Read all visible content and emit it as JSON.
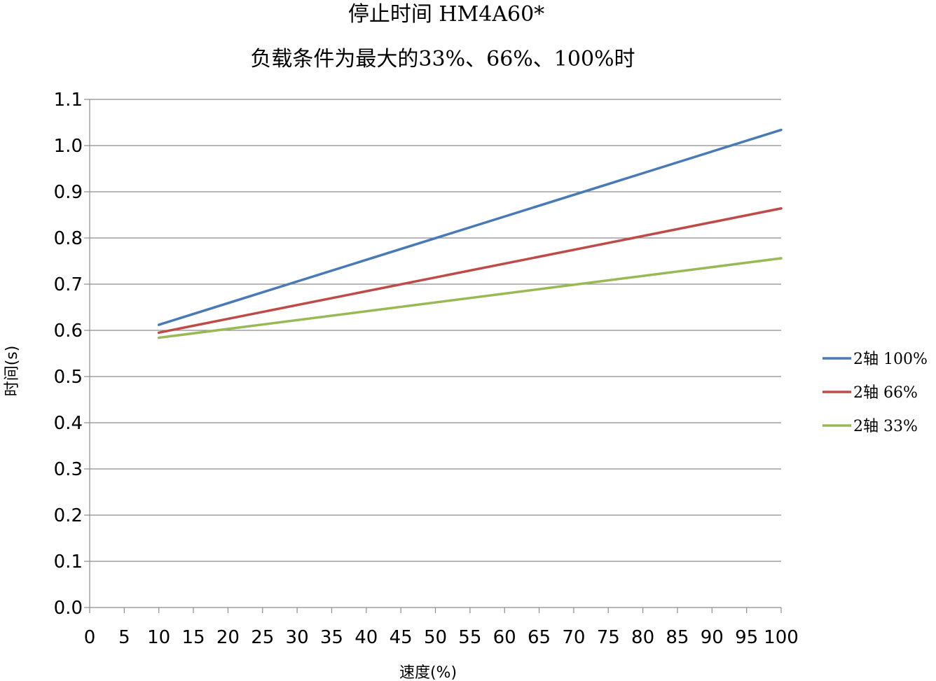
{
  "chart_data": {
    "type": "line",
    "title": "停止时间 HM4A60*",
    "subtitle": "负载条件为最大的33%、66%、100%时",
    "xlabel": "速度(%)",
    "ylabel": "时间(s)",
    "xlim": [
      0,
      100
    ],
    "ylim": [
      0.0,
      1.1
    ],
    "x_ticks": [
      "0",
      "5",
      "10",
      "15",
      "20",
      "25",
      "30",
      "35",
      "40",
      "45",
      "50",
      "55",
      "60",
      "65",
      "70",
      "75",
      "80",
      "85",
      "90",
      "95",
      "100"
    ],
    "y_ticks": [
      "0.0",
      "0.1",
      "0.2",
      "0.3",
      "0.4",
      "0.5",
      "0.6",
      "0.7",
      "0.8",
      "0.9",
      "1.0",
      "1.1"
    ],
    "grid": "horizontal",
    "legend_position": "right",
    "series": [
      {
        "name": "2轴 100%",
        "color": "#4a7ab5",
        "x": [
          10,
          100
        ],
        "y": [
          0.612,
          1.034
        ]
      },
      {
        "name": "2轴 66%",
        "color": "#be4b48",
        "x": [
          10,
          100
        ],
        "y": [
          0.595,
          0.864
        ]
      },
      {
        "name": "2轴 33%",
        "color": "#98b954",
        "x": [
          10,
          100
        ],
        "y": [
          0.584,
          0.756
        ]
      }
    ]
  }
}
